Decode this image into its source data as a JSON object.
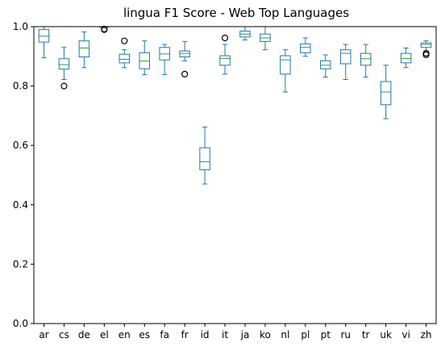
{
  "chart_data": {
    "type": "boxplot",
    "title": "lingua F1 Score - Web Top Languages",
    "xlabel": "",
    "ylabel": "",
    "ylim": [
      0.0,
      1.0
    ],
    "yticks": [
      "0.0",
      "0.2",
      "0.4",
      "0.6",
      "0.8",
      "1.0"
    ],
    "grid": false,
    "colors": {
      "box": "#1f77b4",
      "median": "#2ca02c",
      "flier": "#000000",
      "axis": "#000000"
    },
    "categories": [
      "ar",
      "cs",
      "de",
      "el",
      "en",
      "es",
      "fa",
      "fr",
      "id",
      "it",
      "ja",
      "ko",
      "nl",
      "pl",
      "pt",
      "ru",
      "tr",
      "uk",
      "vi",
      "zh"
    ],
    "boxes": [
      {
        "label": "ar",
        "whisker_low": 0.895,
        "q1": 0.948,
        "median": 0.968,
        "q3": 0.99,
        "whisker_high": 1.0,
        "fliers": []
      },
      {
        "label": "cs",
        "whisker_low": 0.822,
        "q1": 0.857,
        "median": 0.872,
        "q3": 0.892,
        "whisker_high": 0.93,
        "fliers": [
          0.8
        ]
      },
      {
        "label": "de",
        "whisker_low": 0.862,
        "q1": 0.898,
        "median": 0.928,
        "q3": 0.952,
        "whisker_high": 0.982,
        "fliers": []
      },
      {
        "label": "el",
        "whisker_low": 0.995,
        "q1": 1.0,
        "median": 1.0,
        "q3": 1.0,
        "whisker_high": 1.0,
        "fliers": [
          0.99,
          0.992
        ]
      },
      {
        "label": "en",
        "whisker_low": 0.862,
        "q1": 0.878,
        "median": 0.89,
        "q3": 0.907,
        "whisker_high": 0.922,
        "fliers": [
          0.952
        ]
      },
      {
        "label": "es",
        "whisker_low": 0.838,
        "q1": 0.858,
        "median": 0.884,
        "q3": 0.912,
        "whisker_high": 0.952,
        "fliers": []
      },
      {
        "label": "fa",
        "whisker_low": 0.838,
        "q1": 0.888,
        "median": 0.908,
        "q3": 0.93,
        "whisker_high": 0.94,
        "fliers": []
      },
      {
        "label": "fr",
        "whisker_low": 0.885,
        "q1": 0.898,
        "median": 0.91,
        "q3": 0.918,
        "whisker_high": 0.95,
        "fliers": [
          0.84
        ]
      },
      {
        "label": "id",
        "whisker_low": 0.47,
        "q1": 0.518,
        "median": 0.545,
        "q3": 0.592,
        "whisker_high": 0.662,
        "fliers": []
      },
      {
        "label": "it",
        "whisker_low": 0.84,
        "q1": 0.87,
        "median": 0.893,
        "q3": 0.902,
        "whisker_high": 0.94,
        "fliers": [
          0.962
        ]
      },
      {
        "label": "ja",
        "whisker_low": 0.955,
        "q1": 0.965,
        "median": 0.975,
        "q3": 0.985,
        "whisker_high": 1.0,
        "fliers": []
      },
      {
        "label": "ko",
        "whisker_low": 0.922,
        "q1": 0.95,
        "median": 0.962,
        "q3": 0.975,
        "whisker_high": 1.0,
        "fliers": []
      },
      {
        "label": "nl",
        "whisker_low": 0.78,
        "q1": 0.84,
        "median": 0.888,
        "q3": 0.902,
        "whisker_high": 0.922,
        "fliers": []
      },
      {
        "label": "pl",
        "whisker_low": 0.9,
        "q1": 0.912,
        "median": 0.93,
        "q3": 0.942,
        "whisker_high": 0.962,
        "fliers": []
      },
      {
        "label": "pt",
        "whisker_low": 0.83,
        "q1": 0.858,
        "median": 0.87,
        "q3": 0.885,
        "whisker_high": 0.905,
        "fliers": []
      },
      {
        "label": "ru",
        "whisker_low": 0.822,
        "q1": 0.875,
        "median": 0.91,
        "q3": 0.922,
        "whisker_high": 0.94,
        "fliers": []
      },
      {
        "label": "tr",
        "whisker_low": 0.83,
        "q1": 0.87,
        "median": 0.892,
        "q3": 0.91,
        "whisker_high": 0.94,
        "fliers": []
      },
      {
        "label": "uk",
        "whisker_low": 0.69,
        "q1": 0.737,
        "median": 0.78,
        "q3": 0.815,
        "whisker_high": 0.87,
        "fliers": []
      },
      {
        "label": "vi",
        "whisker_low": 0.862,
        "q1": 0.878,
        "median": 0.893,
        "q3": 0.91,
        "whisker_high": 0.928,
        "fliers": []
      },
      {
        "label": "zh",
        "whisker_low": 0.918,
        "q1": 0.93,
        "median": 0.94,
        "q3": 0.945,
        "whisker_high": 0.952,
        "fliers": [
          0.905,
          0.91
        ]
      }
    ]
  }
}
